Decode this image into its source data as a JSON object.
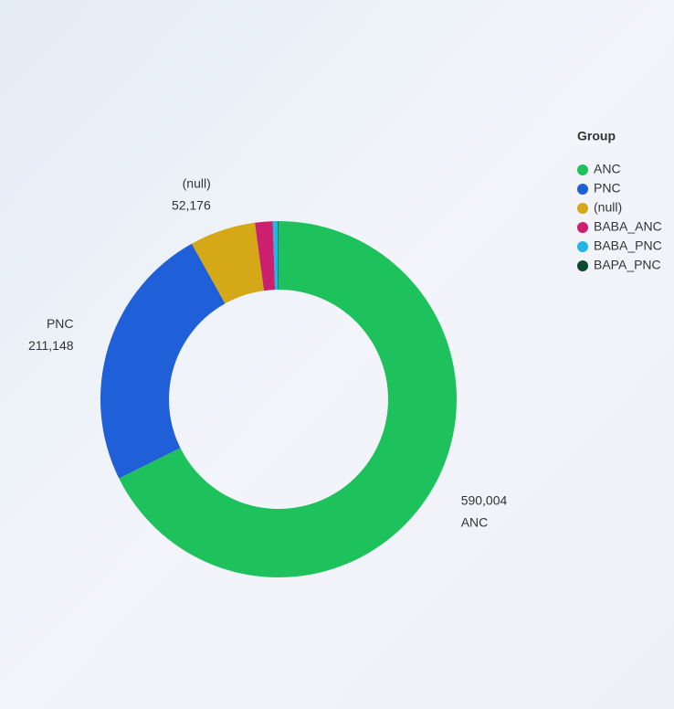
{
  "chart_data": {
    "type": "donut",
    "legend_title": "Group",
    "categories": [
      "ANC",
      "PNC",
      "(null)",
      "BABA_ANC",
      "BABA_PNC",
      "BAPA_PNC"
    ],
    "values": [
      590004,
      211148,
      52176,
      14000,
      4000,
      500
    ],
    "value_labels": [
      "590,004",
      "211,148",
      "52,176",
      null,
      null,
      null
    ],
    "colors": [
      "#1dc25c",
      "#1f5fd8",
      "#d4a816",
      "#cc1f6e",
      "#22b5e6",
      "#0d4a2e"
    ],
    "legend": "right"
  }
}
